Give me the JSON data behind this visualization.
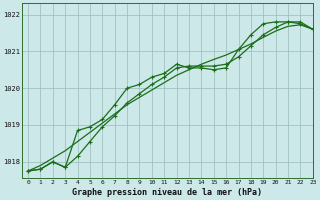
{
  "title": "Graphe pression niveau de la mer (hPa)",
  "background_color": "#cce8e8",
  "line_color": "#1a6e1a",
  "grid_color": "#99bbbb",
  "xlim": [
    -0.5,
    23
  ],
  "ylim": [
    1017.55,
    1022.3
  ],
  "yticks": [
    1018,
    1019,
    1020,
    1021,
    1022
  ],
  "xticks": [
    0,
    1,
    2,
    3,
    4,
    5,
    6,
    7,
    8,
    9,
    10,
    11,
    12,
    13,
    14,
    15,
    16,
    17,
    18,
    19,
    20,
    21,
    22,
    23
  ],
  "series_smooth": [
    1017.75,
    1017.9,
    1018.1,
    1018.3,
    1018.55,
    1018.8,
    1019.05,
    1019.3,
    1019.55,
    1019.75,
    1019.95,
    1020.15,
    1020.35,
    1020.5,
    1020.65,
    1020.78,
    1020.9,
    1021.05,
    1021.2,
    1021.38,
    1021.55,
    1021.68,
    1021.72,
    1021.6
  ],
  "series_upper": [
    1017.75,
    1017.8,
    1018.0,
    1017.85,
    1018.85,
    1018.95,
    1019.15,
    1019.55,
    1020.0,
    1020.1,
    1020.3,
    1020.4,
    1020.65,
    1020.55,
    1020.55,
    1020.5,
    1020.55,
    1021.05,
    1021.45,
    1021.75,
    1021.8,
    1021.8,
    1021.75,
    1021.6
  ],
  "series_lower": [
    1017.75,
    1017.8,
    1018.0,
    1017.85,
    1018.15,
    1018.55,
    1018.95,
    1019.25,
    1019.6,
    1019.85,
    1020.1,
    1020.3,
    1020.55,
    1020.6,
    1020.6,
    1020.6,
    1020.65,
    1020.85,
    1021.15,
    1021.45,
    1021.65,
    1021.8,
    1021.8,
    1021.6
  ]
}
